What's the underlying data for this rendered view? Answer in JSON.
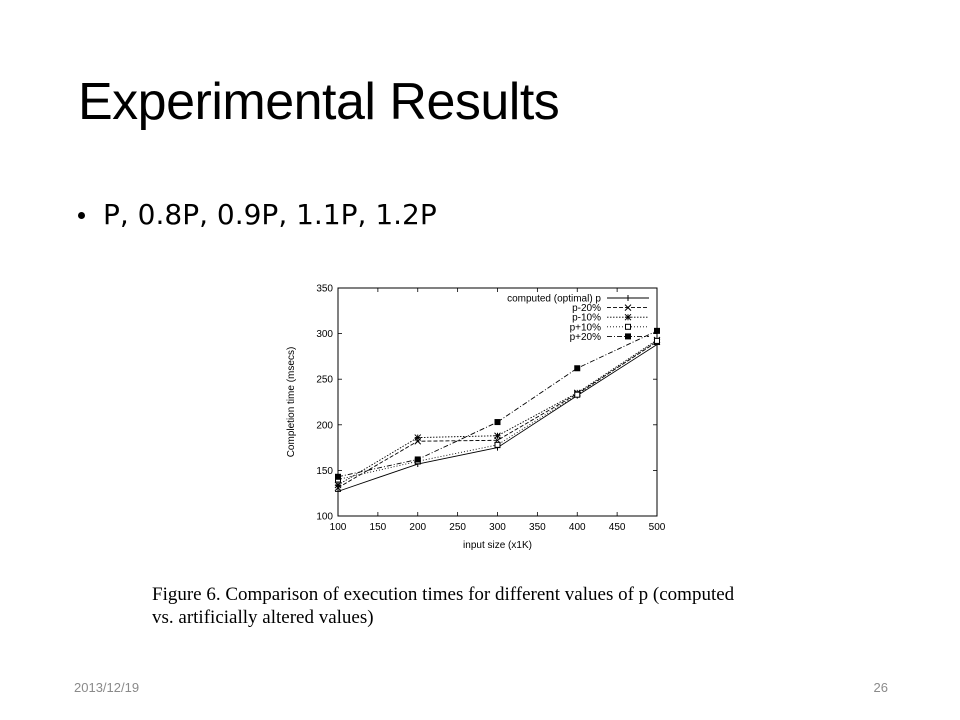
{
  "slide": {
    "title": "Experimental Results",
    "bullet": "P, 0.8P, 0.9P, 1.1P, 1.2P",
    "caption_line1": "Figure 6.   Comparison of execution times for different values of p (computed",
    "caption_line2": "vs. artificially altered values)",
    "footer_date": "2013/12/19",
    "page_number": "26"
  },
  "chart_data": {
    "type": "line",
    "xlabel": "input size (x1K)",
    "ylabel": "Completion time (msecs)",
    "xlim": [
      100,
      500
    ],
    "ylim": [
      100,
      350
    ],
    "xticks": [
      100,
      150,
      200,
      250,
      300,
      350,
      400,
      450,
      500
    ],
    "yticks": [
      100,
      150,
      200,
      250,
      300,
      350
    ],
    "legend_position": "top-right",
    "x": [
      100,
      200,
      300,
      400,
      500
    ],
    "series": [
      {
        "name": "computed (optimal) p",
        "marker": "plus",
        "dash": "",
        "values": [
          127,
          157,
          175,
          232,
          288
        ]
      },
      {
        "name": "p-20%",
        "marker": "cross",
        "dash": "4,2",
        "values": [
          131,
          182,
          183,
          234,
          291
        ]
      },
      {
        "name": "p-10%",
        "marker": "star",
        "dash": "1.5,1.5",
        "values": [
          134,
          186,
          188,
          235,
          293
        ]
      },
      {
        "name": "p+10%",
        "marker": "open-square",
        "dash": "1,2",
        "values": [
          140,
          160,
          178,
          233,
          292
        ]
      },
      {
        "name": "p+20%",
        "marker": "filled-square",
        "dash": "5,2,1,2",
        "values": [
          143,
          162,
          203,
          262,
          303
        ]
      }
    ]
  }
}
